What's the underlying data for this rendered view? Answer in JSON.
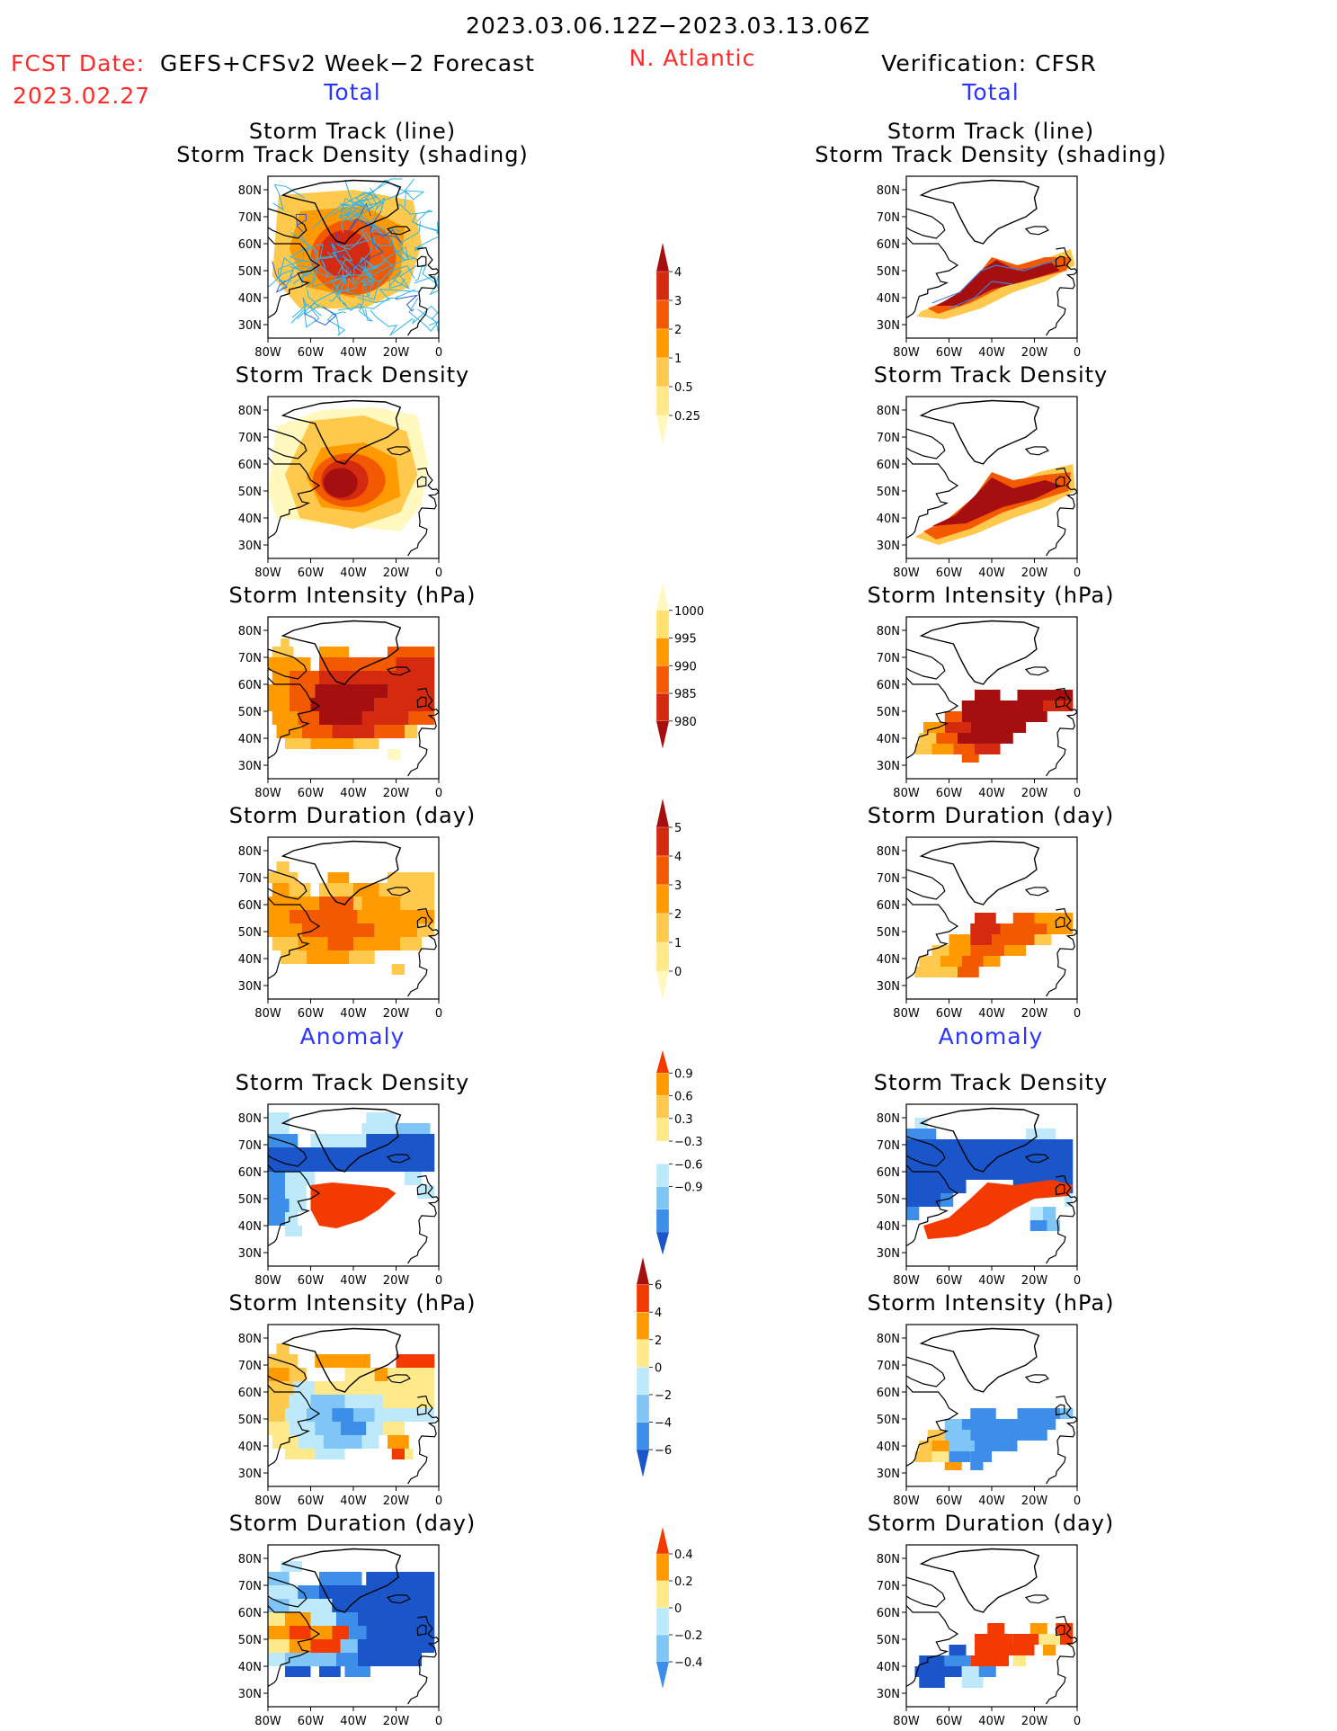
{
  "header": {
    "period": "2023.03.06.12Z−2023.03.13.06Z",
    "fcst_label": "FCST Date:",
    "model": "GEFS+CFSv2 Week−2 Forecast",
    "fcst_date": "2023.02.27",
    "region": "N. Atlantic",
    "verification": "Verification: CFSR"
  },
  "sections": {
    "total_left": "Total",
    "total_right": "Total",
    "anomaly_left": "Anomaly",
    "anomaly_right": "Anomaly"
  },
  "panel_titles": {
    "track_line": "Storm Track (line)",
    "track_density_shading": "Storm Track Density (shading)",
    "track_density": "Storm Track Density",
    "intensity": "Storm Intensity (hPa)",
    "duration": "Storm Duration (day)"
  },
  "chart_data": [
    {
      "type": "heatmap",
      "name": "forecast_total_track",
      "xlabels": [
        "80W",
        "60W",
        "40W",
        "20W",
        "0"
      ],
      "ylabels": [
        "80N",
        "70N",
        "60N",
        "50N",
        "40N",
        "30N"
      ],
      "xlim": [
        -80,
        0
      ],
      "ylim": [
        25,
        85
      ],
      "levels": [
        0.25,
        0.5,
        1,
        2,
        3,
        4
      ]
    },
    {
      "type": "heatmap",
      "name": "verification_total_track",
      "xlabels": [
        "80W",
        "60W",
        "40W",
        "20W",
        "0"
      ],
      "ylabels": [
        "80N",
        "70N",
        "60N",
        "50N",
        "40N",
        "30N"
      ],
      "xlim": [
        -80,
        0
      ],
      "ylim": [
        25,
        85
      ],
      "levels": [
        0.25,
        0.5,
        1,
        2,
        3,
        4
      ]
    }
  ],
  "colorbars": [
    {
      "name": "total-density",
      "labels": [
        "4",
        "3",
        "2",
        "1",
        "0.5",
        "0.25"
      ],
      "colors": [
        "#a50f0f",
        "#d42a0f",
        "#f35a00",
        "#ff9b00",
        "#ffc94d",
        "#ffe98a",
        "#fff8bf"
      ]
    },
    {
      "name": "total-intensity",
      "labels": [
        "1000",
        "995",
        "990",
        "985",
        "980"
      ],
      "colors": [
        "#fff8bf",
        "#ffe170",
        "#ff9b00",
        "#f35a00",
        "#d42a0f",
        "#a50f0f"
      ]
    },
    {
      "name": "total-duration",
      "labels": [
        "5",
        "4",
        "3",
        "2",
        "1",
        "0"
      ],
      "colors": [
        "#a50f0f",
        "#d42a0f",
        "#f35a00",
        "#ff9b00",
        "#ffc94d",
        "#ffe98a",
        "#fff8bf"
      ]
    },
    {
      "name": "anom-density",
      "labels": [
        "0.9",
        "0.6",
        "0.3",
        "−0.3",
        "−0.6",
        "−0.9"
      ],
      "colors": [
        "#f33a00",
        "#ff9b00",
        "#ffc94d",
        "#ffe98a",
        "#ffffff",
        "#bde9fb",
        "#7fc5f5",
        "#3d8ee8",
        "#1a56c9"
      ]
    },
    {
      "name": "anom-intensity",
      "labels": [
        "6",
        "4",
        "2",
        "0",
        "−2",
        "−4",
        "−6"
      ],
      "colors": [
        "#a50f0f",
        "#f33a00",
        "#ff9b00",
        "#ffe98a",
        "#bde9fb",
        "#7fc5f5",
        "#3d8ee8",
        "#1a56c9"
      ]
    },
    {
      "name": "anom-duration",
      "labels": [
        "0.4",
        "0.2",
        "0",
        "−0.2",
        "−0.4"
      ],
      "colors": [
        "#f33a00",
        "#ff9b00",
        "#ffe98a",
        "#bde9fb",
        "#7fc5f5",
        "#3d8ee8"
      ]
    }
  ]
}
